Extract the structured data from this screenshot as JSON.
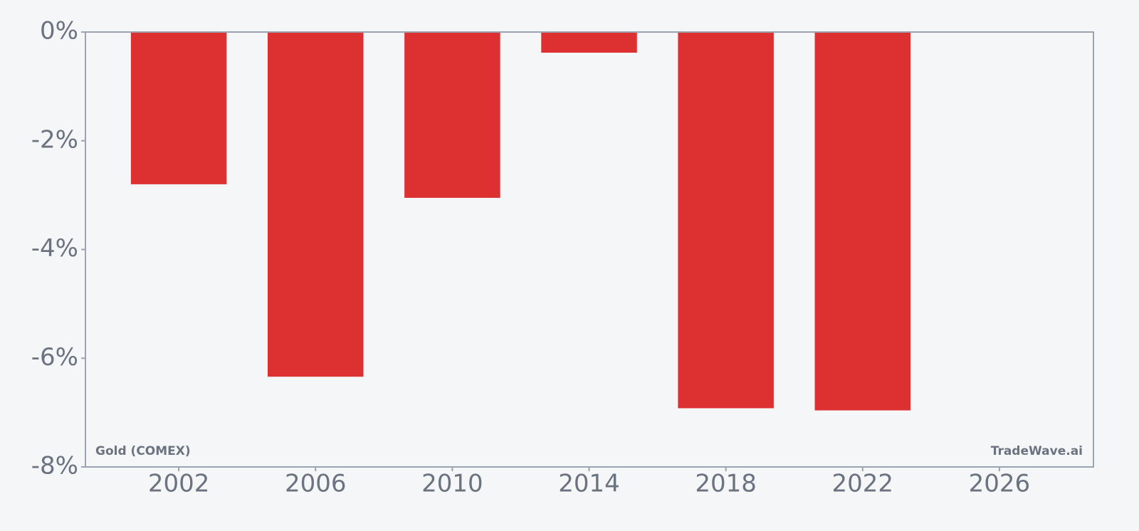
{
  "chart_data": {
    "type": "bar",
    "x": [
      2002,
      2006,
      2010,
      2014,
      2018,
      2022
    ],
    "values": [
      -2.8,
      -6.34,
      -3.05,
      -0.38,
      -6.92,
      -6.96
    ],
    "color": "#dc3031",
    "xlim": [
      1999.27,
      2028.75
    ],
    "xticks": [
      2002,
      2006,
      2010,
      2014,
      2018,
      2022,
      2026
    ],
    "ylim": [
      -8,
      0
    ],
    "yticks": [
      {
        "value": 0,
        "label": "0%"
      },
      {
        "value": -2,
        "label": "-2%"
      },
      {
        "value": -4,
        "label": "-4%"
      },
      {
        "value": -6,
        "label": "-6%"
      },
      {
        "value": -8,
        "label": "-8%"
      }
    ],
    "grid": false,
    "annotations": [
      "Gold (COMEX)",
      "TradeWave.ai"
    ]
  }
}
